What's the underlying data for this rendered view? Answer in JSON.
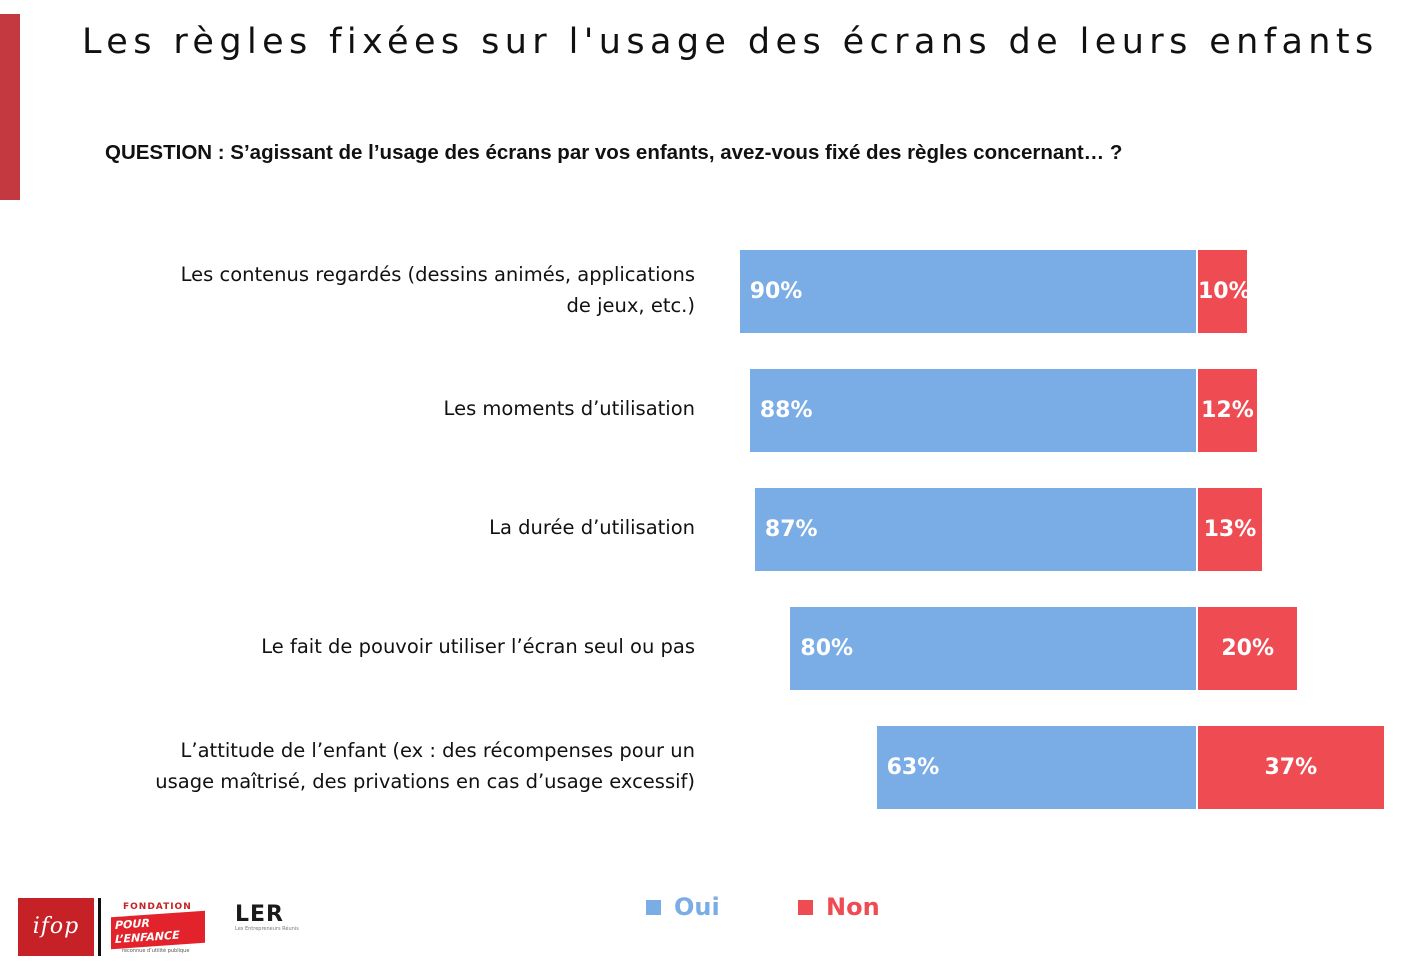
{
  "title": "Les règles fixées sur l'usage des écrans de leurs enfants",
  "question": {
    "prefix": "QUESTION :",
    "text": "S’agissant de l’usage des écrans par vos enfants, avez-vous fixé des règles concernant… ?"
  },
  "chart_data": {
    "type": "bar",
    "orientation": "horizontal",
    "stacked": true,
    "categories": [
      "Les contenus regardés (dessins animés, applications de jeux, etc.)",
      "Les moments d’utilisation",
      "La durée d’utilisation",
      "Le fait de pouvoir utiliser l’écran seul ou pas",
      "L’attitude de l’enfant (ex : des récompenses pour un usage maîtrisé, des privations en cas d’usage excessif)"
    ],
    "category_lines": [
      [
        "Les contenus regardés (dessins animés, applications",
        "de jeux, etc.)"
      ],
      [
        "Les moments d’utilisation"
      ],
      [
        "La durée d’utilisation"
      ],
      [
        "Le fait de pouvoir utiliser l’écran seul ou pas"
      ],
      [
        "L’attitude de l’enfant (ex : des récompenses pour un",
        "usage maîtrisé, des privations en cas d’usage excessif)"
      ]
    ],
    "series": [
      {
        "name": "Oui",
        "values": [
          90,
          88,
          87,
          80,
          63
        ],
        "labels": [
          "90%",
          "88%",
          "87%",
          "80%",
          "63%"
        ],
        "color": "#7aace6"
      },
      {
        "name": "Non",
        "values": [
          10,
          12,
          13,
          20,
          37
        ],
        "labels": [
          "10%",
          "12%",
          "13%",
          "20%",
          "37%"
        ],
        "color": "#ef4b53"
      }
    ],
    "unit": "%",
    "legend_position": "bottom-center",
    "grid": false
  },
  "logos": {
    "ifop": "ifop",
    "fondation_top": "FONDATION",
    "fondation_line1": "POUR",
    "fondation_line2": "L’ENFANCE",
    "fondation_bottom": "reconnue d’utilité publique",
    "ler": "LER",
    "ler_sub": "Les Entrepreneurs Réunis"
  },
  "colors": {
    "accent": "#c4393f",
    "oui": "#7aace6",
    "non": "#ef4b53"
  }
}
